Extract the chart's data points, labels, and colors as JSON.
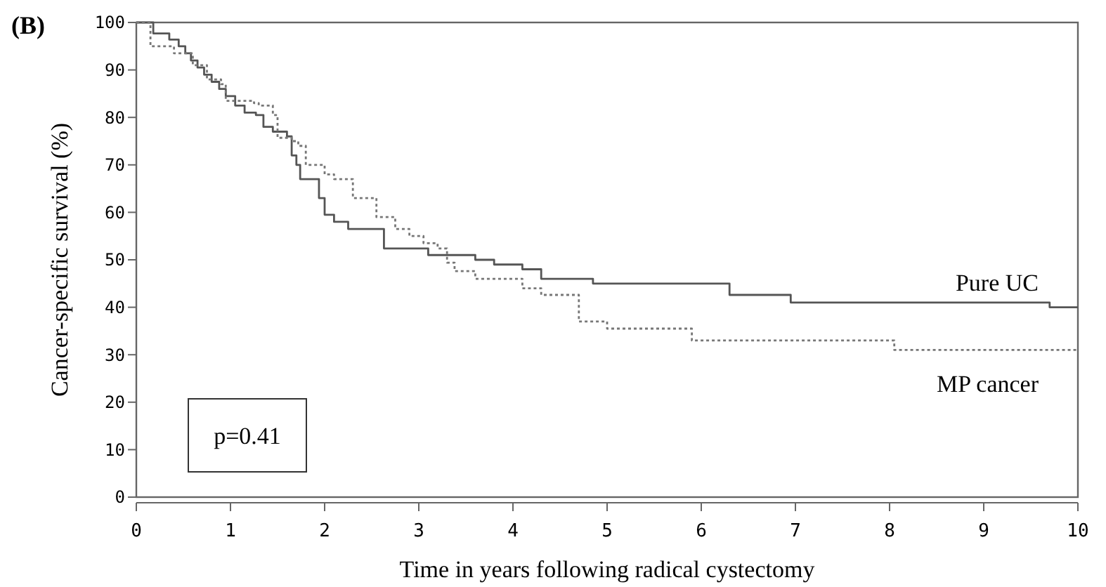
{
  "chart_data": {
    "type": "step",
    "title": "(B)",
    "xlabel": "Time in years following radical cystectomy",
    "ylabel": "Cancer-specific survival (%)",
    "xlim": [
      0,
      10
    ],
    "ylim": [
      0,
      100
    ],
    "xticks": [
      0,
      1,
      2,
      3,
      4,
      5,
      6,
      7,
      8,
      9,
      10
    ],
    "yticks": [
      0,
      10,
      20,
      30,
      40,
      50,
      60,
      70,
      80,
      90,
      100
    ],
    "grid": false,
    "annotations": [
      "p=0.41"
    ],
    "series": [
      {
        "name": "Pure UC",
        "color": "#555555",
        "line_style": "solid",
        "x": [
          0,
          0.18,
          0.35,
          0.45,
          0.52,
          0.58,
          0.65,
          0.72,
          0.8,
          0.88,
          0.95,
          1.05,
          1.15,
          1.27,
          1.35,
          1.45,
          1.6,
          1.65,
          1.7,
          1.74,
          1.94,
          2.0,
          2.1,
          2.25,
          2.63,
          3.1,
          3.6,
          3.8,
          4.1,
          4.3,
          4.85,
          6.3,
          6.95,
          9.7,
          10
        ],
        "values": [
          100,
          97.7,
          96.4,
          95,
          93.5,
          92,
          90.5,
          89,
          87.5,
          86,
          84.5,
          82.5,
          81,
          80.5,
          78,
          77,
          76,
          72,
          70,
          67,
          63,
          59.5,
          58,
          56.5,
          52.4,
          51,
          50,
          49,
          48,
          46,
          45,
          42.6,
          41,
          40,
          40
        ]
      },
      {
        "name": "MP cancer",
        "color": "#777777",
        "line_style": "dotted",
        "x": [
          0,
          0.15,
          0.4,
          0.6,
          0.75,
          0.9,
          0.95,
          1.25,
          1.3,
          1.45,
          1.5,
          1.65,
          1.72,
          1.8,
          2.0,
          2.1,
          2.3,
          2.55,
          2.75,
          2.9,
          3.05,
          3.2,
          3.3,
          3.38,
          3.6,
          3.9,
          4.1,
          4.3,
          4.7,
          5.0,
          5.9,
          8.05,
          10
        ],
        "values": [
          100,
          95,
          93.5,
          91,
          88,
          87,
          83.5,
          83,
          82.5,
          80.5,
          75.7,
          75,
          74,
          70,
          68,
          67,
          63,
          59,
          56.5,
          55,
          53.5,
          52.4,
          49.4,
          47.6,
          46,
          46,
          44,
          42.6,
          37,
          35.5,
          33,
          31,
          31
        ]
      }
    ]
  }
}
